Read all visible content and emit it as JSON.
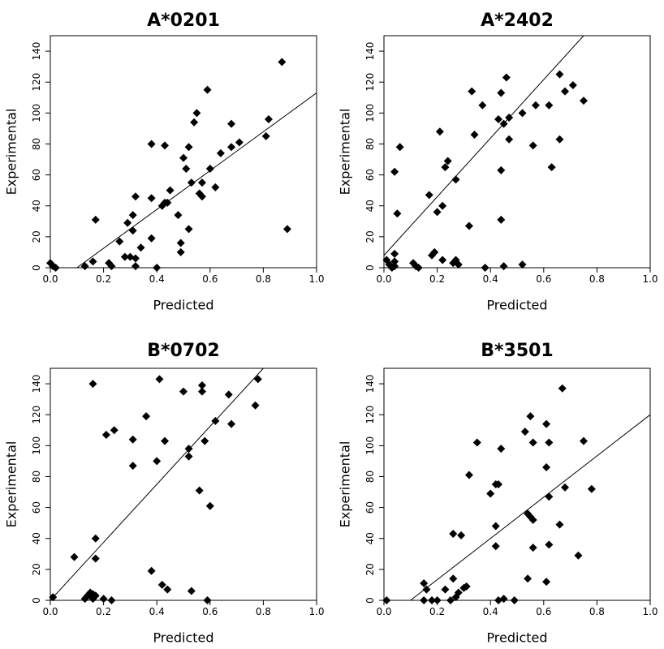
{
  "chart_data": [
    {
      "type": "scatter",
      "title": "A*0201",
      "xlabel": "Predicted",
      "ylabel": "Experimental",
      "xlim": [
        0,
        1
      ],
      "ylim": [
        0,
        150
      ],
      "xticks": [
        "0.0",
        "0.2",
        "0.4",
        "0.6",
        "0.8",
        "1.0"
      ],
      "yticks": [
        "0",
        "20",
        "40",
        "60",
        "80",
        "100",
        "120",
        "140"
      ],
      "grid": false,
      "fit_line": [
        [
          0.1,
          0
        ],
        [
          1.0,
          113
        ]
      ],
      "points": [
        [
          0.0,
          3
        ],
        [
          0.01,
          1
        ],
        [
          0.02,
          0
        ],
        [
          0.13,
          1
        ],
        [
          0.16,
          4
        ],
        [
          0.17,
          31
        ],
        [
          0.22,
          3
        ],
        [
          0.23,
          1
        ],
        [
          0.26,
          17
        ],
        [
          0.28,
          7
        ],
        [
          0.29,
          29
        ],
        [
          0.3,
          7
        ],
        [
          0.31,
          24
        ],
        [
          0.31,
          34
        ],
        [
          0.32,
          46
        ],
        [
          0.32,
          6
        ],
        [
          0.32,
          1
        ],
        [
          0.34,
          13
        ],
        [
          0.38,
          80
        ],
        [
          0.38,
          45
        ],
        [
          0.38,
          19
        ],
        [
          0.4,
          0
        ],
        [
          0.42,
          40
        ],
        [
          0.43,
          42
        ],
        [
          0.43,
          79
        ],
        [
          0.44,
          42
        ],
        [
          0.45,
          50
        ],
        [
          0.48,
          34
        ],
        [
          0.49,
          16
        ],
        [
          0.49,
          10
        ],
        [
          0.5,
          71
        ],
        [
          0.51,
          64
        ],
        [
          0.52,
          78
        ],
        [
          0.52,
          25
        ],
        [
          0.53,
          55
        ],
        [
          0.54,
          94
        ],
        [
          0.55,
          100
        ],
        [
          0.56,
          48
        ],
        [
          0.57,
          46
        ],
        [
          0.57,
          55
        ],
        [
          0.59,
          115
        ],
        [
          0.6,
          64
        ],
        [
          0.62,
          52
        ],
        [
          0.64,
          74
        ],
        [
          0.68,
          78
        ],
        [
          0.68,
          93
        ],
        [
          0.71,
          81
        ],
        [
          0.81,
          85
        ],
        [
          0.82,
          96
        ],
        [
          0.87,
          133
        ],
        [
          0.89,
          25
        ]
      ]
    },
    {
      "type": "scatter",
      "title": "A*2402",
      "xlabel": "Predicted",
      "ylabel": "Experimental",
      "xlim": [
        0,
        1
      ],
      "ylim": [
        0,
        150
      ],
      "xticks": [
        "0.0",
        "0.2",
        "0.4",
        "0.6",
        "0.8",
        "1.0"
      ],
      "yticks": [
        "0",
        "20",
        "40",
        "60",
        "80",
        "100",
        "120",
        "140"
      ],
      "grid": false,
      "fit_line": [
        [
          0.0,
          8
        ],
        [
          0.75,
          150
        ]
      ],
      "points": [
        [
          0.01,
          5
        ],
        [
          0.02,
          2
        ],
        [
          0.03,
          0
        ],
        [
          0.04,
          4
        ],
        [
          0.04,
          1
        ],
        [
          0.04,
          9
        ],
        [
          0.04,
          62
        ],
        [
          0.05,
          35
        ],
        [
          0.06,
          78
        ],
        [
          0.11,
          3
        ],
        [
          0.12,
          1
        ],
        [
          0.13,
          0
        ],
        [
          0.17,
          47
        ],
        [
          0.18,
          8
        ],
        [
          0.19,
          10
        ],
        [
          0.2,
          36
        ],
        [
          0.21,
          88
        ],
        [
          0.22,
          40
        ],
        [
          0.22,
          5
        ],
        [
          0.23,
          65
        ],
        [
          0.24,
          69
        ],
        [
          0.26,
          3
        ],
        [
          0.27,
          57
        ],
        [
          0.27,
          5
        ],
        [
          0.28,
          2
        ],
        [
          0.32,
          27
        ],
        [
          0.33,
          114
        ],
        [
          0.34,
          86
        ],
        [
          0.37,
          105
        ],
        [
          0.38,
          0
        ],
        [
          0.43,
          96
        ],
        [
          0.44,
          63
        ],
        [
          0.44,
          113
        ],
        [
          0.44,
          31
        ],
        [
          0.45,
          93
        ],
        [
          0.45,
          1
        ],
        [
          0.46,
          123
        ],
        [
          0.47,
          97
        ],
        [
          0.47,
          83
        ],
        [
          0.52,
          2
        ],
        [
          0.52,
          100
        ],
        [
          0.56,
          79
        ],
        [
          0.57,
          105
        ],
        [
          0.62,
          105
        ],
        [
          0.63,
          65
        ],
        [
          0.66,
          125
        ],
        [
          0.66,
          83
        ],
        [
          0.68,
          114
        ],
        [
          0.71,
          118
        ],
        [
          0.75,
          108
        ]
      ]
    },
    {
      "type": "scatter",
      "title": "B*0702",
      "xlabel": "Predicted",
      "ylabel": "Experimental",
      "xlim": [
        0,
        1
      ],
      "ylim": [
        0,
        150
      ],
      "xticks": [
        "0.0",
        "0.2",
        "0.4",
        "0.6",
        "0.8",
        "1.0"
      ],
      "yticks": [
        "0",
        "20",
        "40",
        "60",
        "80",
        "100",
        "120",
        "140"
      ],
      "grid": false,
      "fit_line": [
        [
          0.0,
          0
        ],
        [
          0.8,
          150
        ]
      ],
      "points": [
        [
          0.01,
          2
        ],
        [
          0.09,
          28
        ],
        [
          0.13,
          1
        ],
        [
          0.14,
          3
        ],
        [
          0.15,
          5
        ],
        [
          0.16,
          2
        ],
        [
          0.16,
          4
        ],
        [
          0.16,
          1
        ],
        [
          0.16,
          140
        ],
        [
          0.17,
          27
        ],
        [
          0.17,
          40
        ],
        [
          0.17,
          3
        ],
        [
          0.2,
          1
        ],
        [
          0.21,
          107
        ],
        [
          0.23,
          0
        ],
        [
          0.24,
          110
        ],
        [
          0.31,
          104
        ],
        [
          0.31,
          87
        ],
        [
          0.36,
          119
        ],
        [
          0.38,
          19
        ],
        [
          0.4,
          90
        ],
        [
          0.41,
          143
        ],
        [
          0.42,
          10
        ],
        [
          0.43,
          103
        ],
        [
          0.44,
          7
        ],
        [
          0.5,
          135
        ],
        [
          0.52,
          98
        ],
        [
          0.52,
          93
        ],
        [
          0.53,
          6
        ],
        [
          0.56,
          71
        ],
        [
          0.57,
          135
        ],
        [
          0.57,
          139
        ],
        [
          0.58,
          103
        ],
        [
          0.59,
          0
        ],
        [
          0.6,
          61
        ],
        [
          0.62,
          116
        ],
        [
          0.67,
          133
        ],
        [
          0.68,
          114
        ],
        [
          0.77,
          126
        ],
        [
          0.78,
          143
        ]
      ]
    },
    {
      "type": "scatter",
      "title": "B*3501",
      "xlabel": "Predicted",
      "ylabel": "Experimental",
      "xlim": [
        0,
        1
      ],
      "ylim": [
        0,
        150
      ],
      "xticks": [
        "0.0",
        "0.2",
        "0.4",
        "0.6",
        "0.8",
        "1.0"
      ],
      "yticks": [
        "0",
        "20",
        "40",
        "60",
        "80",
        "100",
        "120",
        "140"
      ],
      "grid": false,
      "fit_line": [
        [
          0.1,
          0
        ],
        [
          1.0,
          120
        ]
      ],
      "points": [
        [
          0.01,
          0
        ],
        [
          0.15,
          0
        ],
        [
          0.15,
          11
        ],
        [
          0.16,
          7
        ],
        [
          0.18,
          0
        ],
        [
          0.2,
          0
        ],
        [
          0.23,
          7
        ],
        [
          0.25,
          0
        ],
        [
          0.26,
          14
        ],
        [
          0.26,
          43
        ],
        [
          0.27,
          2
        ],
        [
          0.28,
          5
        ],
        [
          0.29,
          42
        ],
        [
          0.3,
          8
        ],
        [
          0.31,
          9
        ],
        [
          0.32,
          81
        ],
        [
          0.35,
          102
        ],
        [
          0.4,
          69
        ],
        [
          0.42,
          35
        ],
        [
          0.42,
          75
        ],
        [
          0.42,
          48
        ],
        [
          0.43,
          0
        ],
        [
          0.43,
          75
        ],
        [
          0.44,
          98
        ],
        [
          0.45,
          1
        ],
        [
          0.49,
          0
        ],
        [
          0.53,
          109
        ],
        [
          0.54,
          14
        ],
        [
          0.54,
          56
        ],
        [
          0.55,
          119
        ],
        [
          0.55,
          54
        ],
        [
          0.56,
          52
        ],
        [
          0.56,
          102
        ],
        [
          0.56,
          34
        ],
        [
          0.61,
          12
        ],
        [
          0.61,
          114
        ],
        [
          0.61,
          86
        ],
        [
          0.62,
          67
        ],
        [
          0.62,
          36
        ],
        [
          0.62,
          102
        ],
        [
          0.66,
          49
        ],
        [
          0.67,
          137
        ],
        [
          0.68,
          73
        ],
        [
          0.73,
          29
        ],
        [
          0.75,
          103
        ],
        [
          0.78,
          72
        ]
      ]
    }
  ]
}
